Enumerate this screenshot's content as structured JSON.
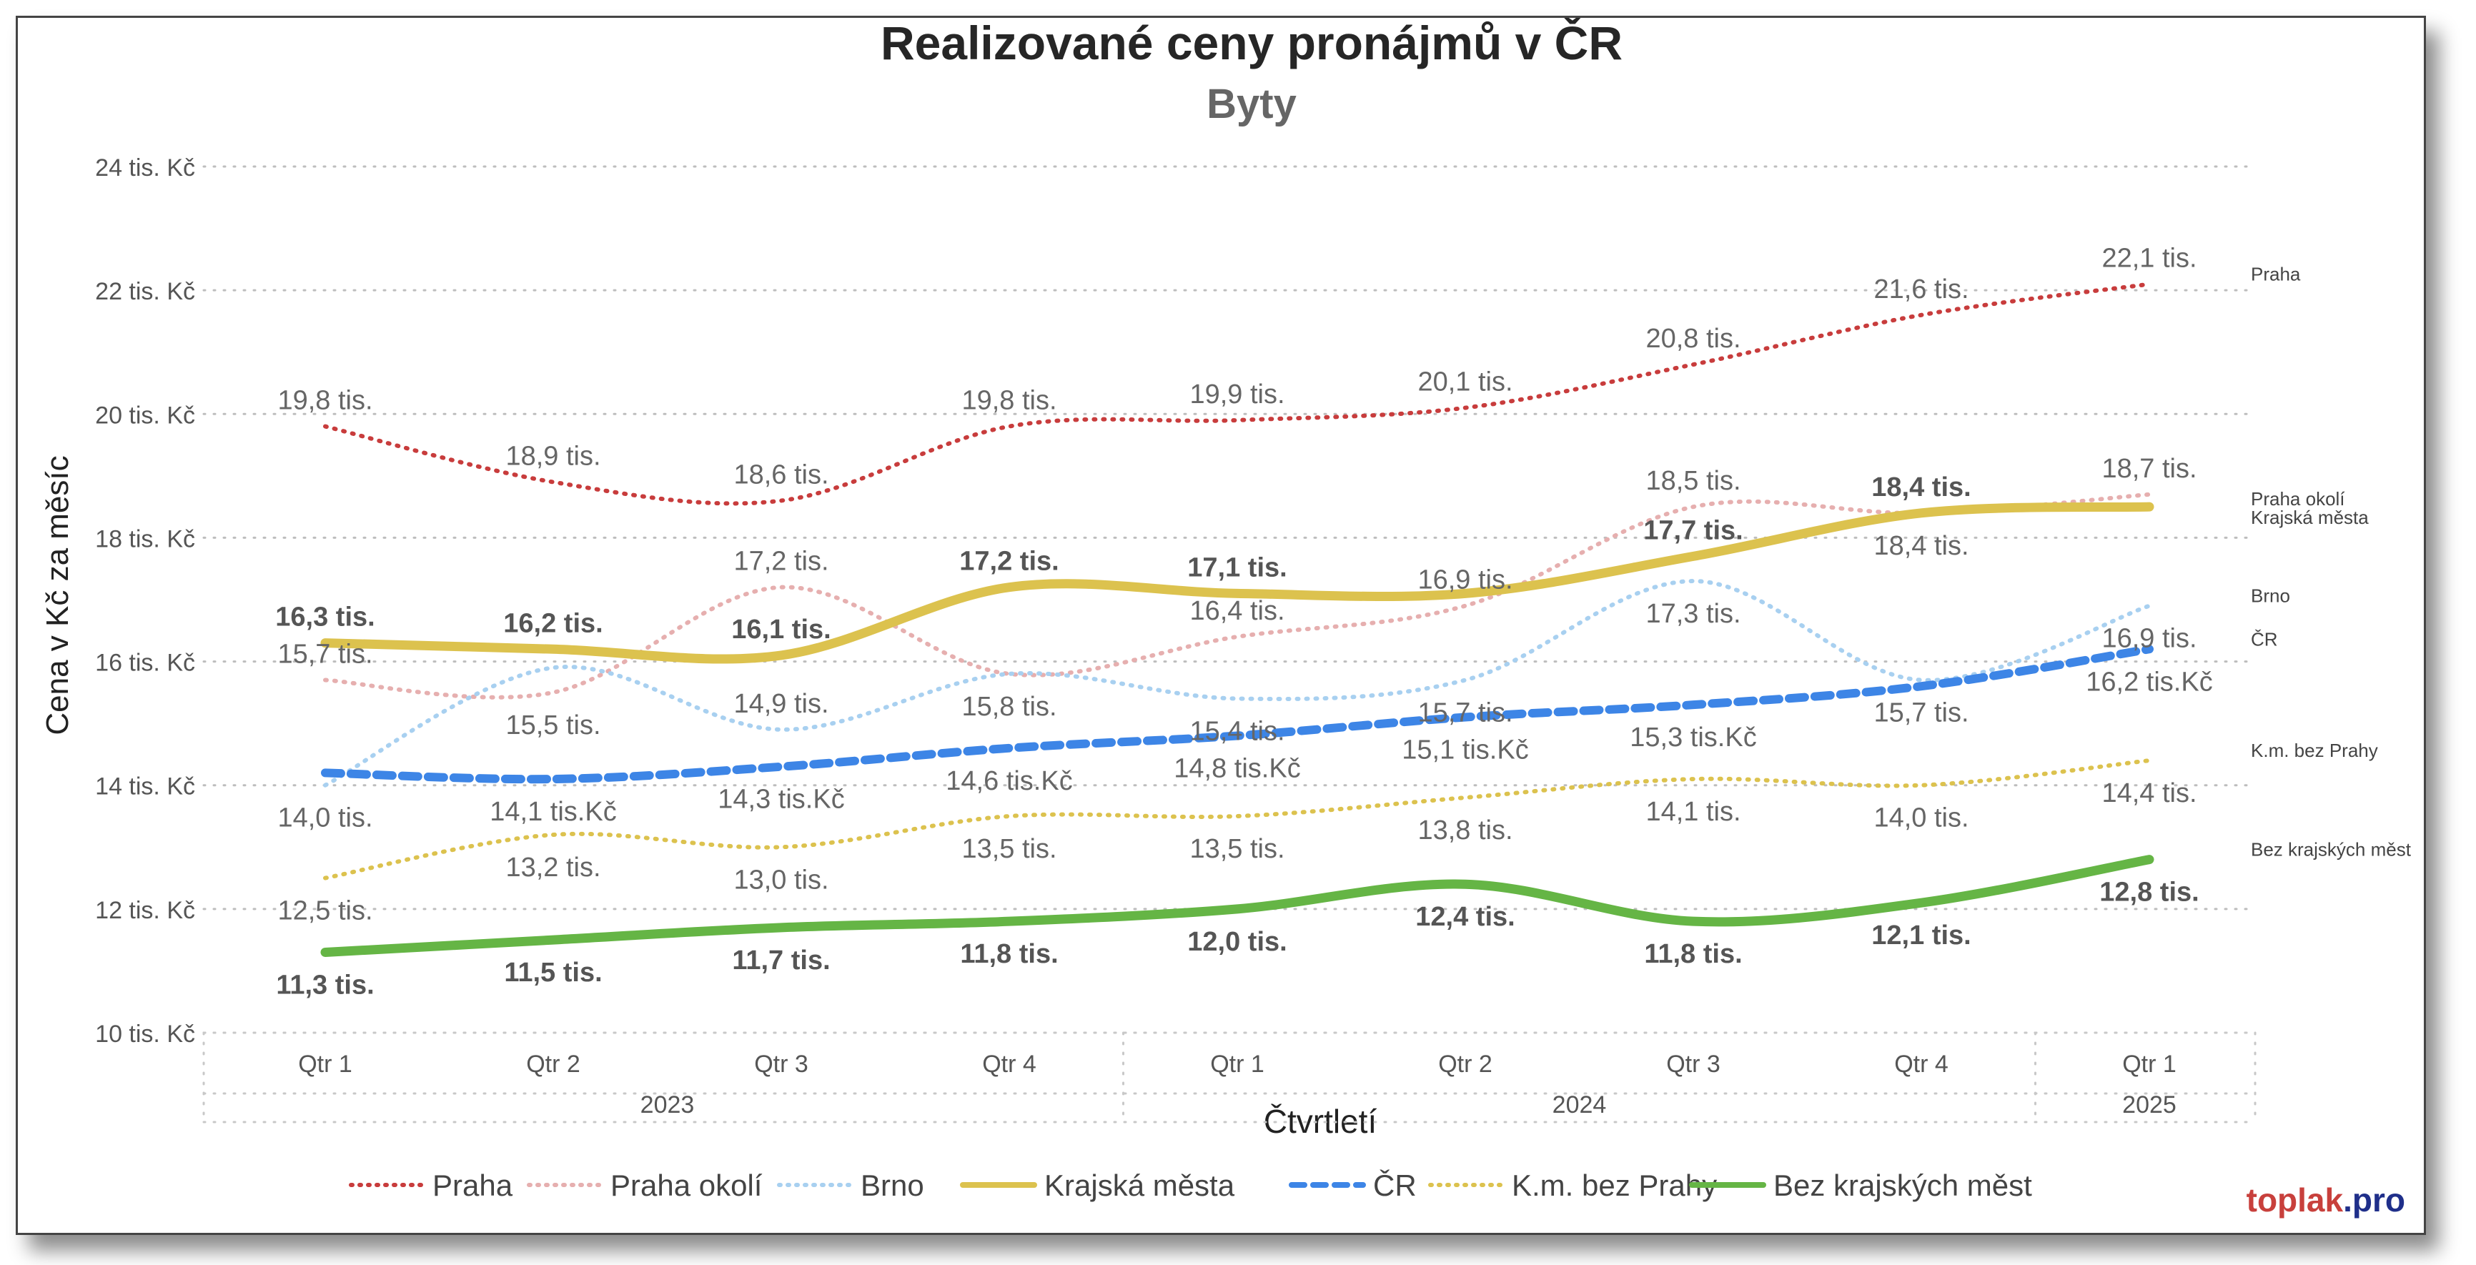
{
  "chart_data": {
    "type": "line",
    "title": "Realizované ceny pronájmů v ČR",
    "subtitle": "Byty",
    "xlabel": "Čtvrtletí",
    "ylabel": "Cena v Kč za měsíc",
    "ylim": [
      10,
      24
    ],
    "y_ticks": [
      {
        "value": 24,
        "label": "24 tis. Kč"
      },
      {
        "value": 22,
        "label": "22 tis. Kč"
      },
      {
        "value": 20,
        "label": "20 tis. Kč"
      },
      {
        "value": 18,
        "label": "18 tis. Kč"
      },
      {
        "value": 16,
        "label": "16 tis. Kč"
      },
      {
        "value": 14,
        "label": "14 tis. Kč"
      },
      {
        "value": 12,
        "label": "12 tis. Kč"
      },
      {
        "value": 10,
        "label": "10 tis. Kč"
      }
    ],
    "categories": [
      "Qtr 1",
      "Qtr 2",
      "Qtr 3",
      "Qtr 4",
      "Qtr 1",
      "Qtr 2",
      "Qtr 3",
      "Qtr 4",
      "Qtr 1"
    ],
    "years": [
      {
        "label": "2023",
        "from": 0,
        "to": 3
      },
      {
        "label": "2024",
        "from": 4,
        "to": 7
      },
      {
        "label": "2025",
        "from": 8,
        "to": 8
      }
    ],
    "grid": true,
    "legend_position": "bottom",
    "series": [
      {
        "name": "Praha",
        "end_label": "Praha",
        "color": "#c83c3c",
        "style": "dotted",
        "width": 6,
        "values": [
          19.8,
          18.9,
          18.6,
          19.8,
          19.9,
          20.1,
          20.8,
          21.6,
          22.1
        ],
        "labels": [
          "19,8 tis.",
          "18,9 tis.",
          "18,6 tis.",
          "19,8 tis.",
          "19,9 tis.",
          "20,1 tis.",
          "20,8 tis.",
          "21,6 tis.",
          "22,1 tis."
        ],
        "label_pos": [
          "above",
          "above",
          "above",
          "above",
          "above",
          "above",
          "above",
          "above",
          "above"
        ],
        "bold": false
      },
      {
        "name": "Praha okolí",
        "end_label": "Praha okolí",
        "color": "#e6afaf",
        "style": "dotted",
        "width": 6,
        "values": [
          15.7,
          15.5,
          17.2,
          15.8,
          16.4,
          16.9,
          18.5,
          18.4,
          18.7
        ],
        "labels": [
          "15,7 tis.",
          "15,5 tis.",
          "17,2 tis.",
          "15,8 tis.",
          "16,4 tis.",
          "16,9 tis.",
          "18,5 tis.",
          "18,4 tis.",
          "18,7 tis."
        ],
        "label_pos": [
          "above",
          "below",
          "above",
          "below",
          "above",
          "above",
          "above",
          "below",
          "above"
        ],
        "bold": false
      },
      {
        "name": "Brno",
        "end_label": "Brno",
        "color": "#a8d0f0",
        "style": "dotted",
        "width": 6,
        "values": [
          14.0,
          15.9,
          14.9,
          15.8,
          15.4,
          15.7,
          17.3,
          15.7,
          16.9
        ],
        "labels": [
          "14,0 tis.",
          "",
          "14,9 tis.",
          "",
          "15,4 tis.",
          "15,7 tis.",
          "17,3 tis.",
          "15,7 tis.",
          "16,9 tis."
        ],
        "label_pos": [
          "below",
          "below",
          "above",
          "below",
          "below",
          "below",
          "below",
          "below",
          "below"
        ],
        "bold": false
      },
      {
        "name": "Krajská města",
        "end_label": "Krajská města",
        "color": "#dcc24e",
        "style": "solid",
        "width": 13,
        "values": [
          16.3,
          16.2,
          16.1,
          17.2,
          17.1,
          17.1,
          17.7,
          18.4,
          18.5
        ],
        "labels": [
          "16,3 tis.",
          "16,2 tis.",
          "16,1 tis.",
          "17,2 tis.",
          "17,1 tis.",
          "",
          "17,7 tis.",
          "18,4 tis.",
          ""
        ],
        "label_pos": [
          "above",
          "above",
          "above",
          "above",
          "above",
          "above",
          "above",
          "above",
          "above"
        ],
        "bold": true
      },
      {
        "name": "ČR",
        "end_label": "ČR",
        "color": "#3d85e6",
        "style": "dashed",
        "width": 12,
        "values": [
          14.2,
          14.1,
          14.3,
          14.6,
          14.8,
          15.1,
          15.3,
          15.6,
          16.2
        ],
        "labels": [
          "",
          "14,1 tis.Kč",
          "14,3 tis.Kč",
          "14,6 tis.Kč",
          "14,8 tis.Kč",
          "15,1 tis.Kč",
          "15,3 tis.Kč",
          "",
          "16,2 tis.Kč"
        ],
        "label_pos": [
          "below",
          "below",
          "below",
          "below",
          "below",
          "below",
          "below",
          "below",
          "below"
        ],
        "bold": false
      },
      {
        "name": "K.m. bez Prahy",
        "end_label": "K.m. bez Prahy",
        "color": "#dcc24e",
        "style": "dotted",
        "width": 6,
        "values": [
          12.5,
          13.2,
          13.0,
          13.5,
          13.5,
          13.8,
          14.1,
          14.0,
          14.4
        ],
        "labels": [
          "12,5 tis.",
          "13,2 tis.",
          "13,0 tis.",
          "13,5 tis.",
          "13,5 tis.",
          "13,8 tis.",
          "14,1 tis.",
          "14,0 tis.",
          "14,4 tis."
        ],
        "label_pos": [
          "below",
          "below",
          "below",
          "below",
          "below",
          "below",
          "below",
          "below",
          "below"
        ],
        "bold": false
      },
      {
        "name": "Bez krajských měst",
        "end_label": "Bez krajských měst",
        "color": "#65b545",
        "style": "solid",
        "width": 13,
        "values": [
          11.3,
          11.5,
          11.7,
          11.8,
          12.0,
          12.4,
          11.8,
          12.1,
          12.8
        ],
        "labels": [
          "11,3 tis.",
          "11,5 tis.",
          "11,7 tis.",
          "11,8 tis.",
          "12,0 tis.",
          "12,4 tis.",
          "11,8 tis.",
          "12,1 tis.",
          "12,8 tis."
        ],
        "label_pos": [
          "below",
          "below",
          "below",
          "below",
          "below",
          "below",
          "below",
          "below",
          "below"
        ],
        "bold": true
      }
    ]
  },
  "branding": {
    "name": "toplak",
    "suffix": ".pro",
    "color_name": "#c8403c",
    "color_suffix": "#1f2f8a"
  }
}
